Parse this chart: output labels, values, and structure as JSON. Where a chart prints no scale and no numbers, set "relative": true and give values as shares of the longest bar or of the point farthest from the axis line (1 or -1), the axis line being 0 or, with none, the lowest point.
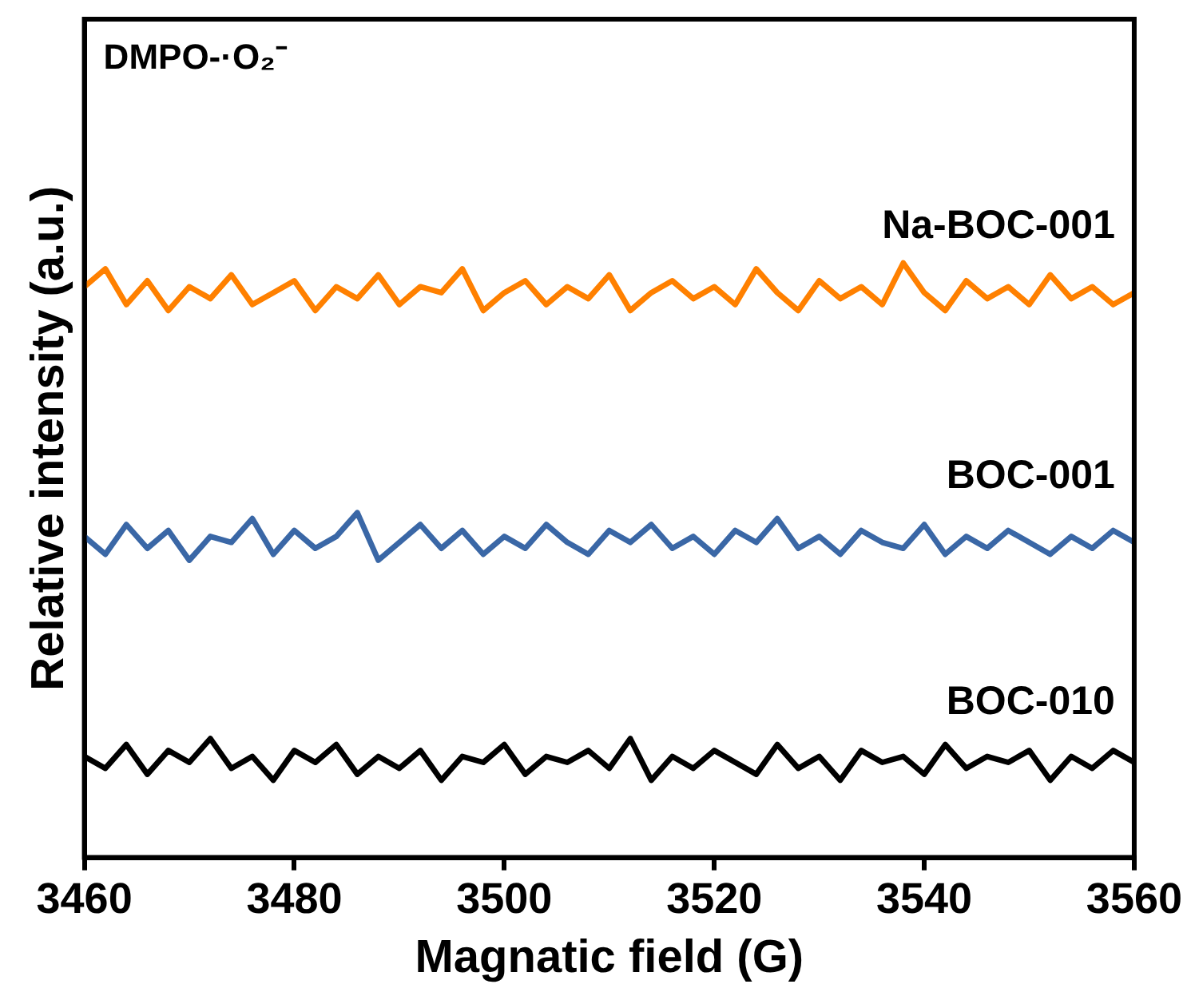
{
  "chart_data": {
    "type": "line",
    "relative": true,
    "xlabel": "Magnatic field (G)",
    "ylabel": "Relative intensity (a.u.)",
    "annotations": [
      "DMPO-·O₂⁻"
    ],
    "xlim": [
      3460,
      3560
    ],
    "xticks": [
      3460,
      3480,
      3500,
      3520,
      3540,
      3560
    ],
    "grid": false,
    "legend": false,
    "marker": "none",
    "line_style": "solid",
    "x": [
      3460,
      3462,
      3464,
      3466,
      3468,
      3470,
      3472,
      3474,
      3476,
      3478,
      3480,
      3482,
      3484,
      3486,
      3488,
      3490,
      3492,
      3494,
      3496,
      3498,
      3500,
      3502,
      3504,
      3506,
      3508,
      3510,
      3512,
      3514,
      3516,
      3518,
      3520,
      3522,
      3524,
      3526,
      3528,
      3530,
      3532,
      3534,
      3536,
      3538,
      3540,
      3542,
      3544,
      3546,
      3548,
      3550,
      3552,
      3554,
      3556,
      3558,
      3560
    ],
    "series": [
      {
        "name": "Na-BOC-001",
        "color": "#ff8000",
        "values": [
          0.96,
          0.99,
          0.93,
          0.97,
          0.92,
          0.96,
          0.94,
          0.98,
          0.93,
          0.95,
          0.97,
          0.92,
          0.96,
          0.94,
          0.98,
          0.93,
          0.96,
          0.95,
          0.99,
          0.92,
          0.95,
          0.97,
          0.93,
          0.96,
          0.94,
          0.98,
          0.92,
          0.95,
          0.97,
          0.94,
          0.96,
          0.93,
          0.99,
          0.95,
          0.92,
          0.97,
          0.94,
          0.96,
          0.93,
          1.0,
          0.95,
          0.92,
          0.97,
          0.94,
          0.96,
          0.93,
          0.98,
          0.94,
          0.96,
          0.93,
          0.95
        ]
      },
      {
        "name": "BOC-001",
        "color": "#3a67a6",
        "values": [
          0.54,
          0.51,
          0.56,
          0.52,
          0.55,
          0.5,
          0.54,
          0.53,
          0.57,
          0.51,
          0.55,
          0.52,
          0.54,
          0.58,
          0.5,
          0.53,
          0.56,
          0.52,
          0.55,
          0.51,
          0.54,
          0.52,
          0.56,
          0.53,
          0.51,
          0.55,
          0.53,
          0.56,
          0.52,
          0.54,
          0.51,
          0.55,
          0.53,
          0.57,
          0.52,
          0.54,
          0.51,
          0.55,
          0.53,
          0.52,
          0.56,
          0.51,
          0.54,
          0.52,
          0.55,
          0.53,
          0.51,
          0.54,
          0.52,
          0.55,
          0.53
        ]
      },
      {
        "name": "BOC-010",
        "color": "#000000",
        "values": [
          0.17,
          0.15,
          0.19,
          0.14,
          0.18,
          0.16,
          0.2,
          0.15,
          0.17,
          0.13,
          0.18,
          0.16,
          0.19,
          0.14,
          0.17,
          0.15,
          0.18,
          0.13,
          0.17,
          0.16,
          0.19,
          0.14,
          0.17,
          0.16,
          0.18,
          0.15,
          0.2,
          0.13,
          0.17,
          0.15,
          0.18,
          0.16,
          0.14,
          0.19,
          0.15,
          0.17,
          0.13,
          0.18,
          0.16,
          0.17,
          0.14,
          0.19,
          0.15,
          0.17,
          0.16,
          0.18,
          0.13,
          0.17,
          0.15,
          0.18,
          0.16
        ]
      }
    ]
  }
}
